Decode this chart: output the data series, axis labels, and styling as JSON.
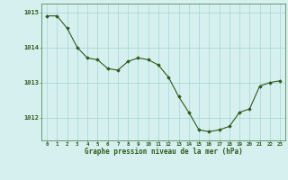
{
  "x": [
    0,
    1,
    2,
    3,
    4,
    5,
    6,
    7,
    8,
    9,
    10,
    11,
    12,
    13,
    14,
    15,
    16,
    17,
    18,
    19,
    20,
    21,
    22,
    23
  ],
  "y": [
    1014.9,
    1014.9,
    1014.55,
    1014.0,
    1013.7,
    1013.65,
    1013.4,
    1013.35,
    1013.6,
    1013.7,
    1013.65,
    1013.5,
    1013.15,
    1012.6,
    1012.15,
    1011.65,
    1011.6,
    1011.65,
    1011.75,
    1012.15,
    1012.25,
    1012.9,
    1013.0,
    1013.05
  ],
  "line_color": "#2d5a1b",
  "marker_color": "#2d5a1b",
  "bg_color": "#d6f0f0",
  "grid_color": "#a8d4d4",
  "xlabel": "Graphe pression niveau de la mer (hPa)",
  "xlabel_color": "#2d5a1b",
  "tick_label_color": "#2d5a1b",
  "ylabel_values": [
    1012,
    1013,
    1014,
    1015
  ],
  "ylim": [
    1011.35,
    1015.25
  ],
  "xlim": [
    -0.5,
    23.5
  ],
  "figsize": [
    3.2,
    2.0
  ],
  "dpi": 100
}
